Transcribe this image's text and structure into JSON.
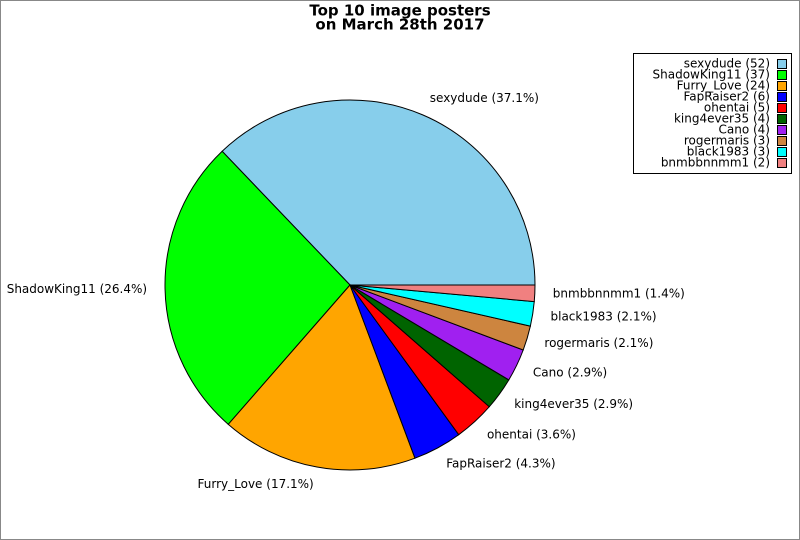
{
  "chart_data": {
    "type": "pie",
    "title": [
      "Top 10 image posters",
      "on March 28th 2017"
    ],
    "categories": [
      "sexydude",
      "ShadowKing11",
      "Furry_Love",
      "FapRaiser2",
      "ohentai",
      "king4ever35",
      "Cano",
      "rogermaris",
      "black1983",
      "bnmbbnnmm1"
    ],
    "values": [
      52,
      37,
      24,
      6,
      5,
      4,
      4,
      3,
      3,
      2
    ],
    "value_labels": [
      "sexydude (52)",
      "ShadowKing11 (37)",
      "Furry_Love (24)",
      "FapRaiser2 (6)",
      "ohentai (5)",
      "king4ever35 (4)",
      "Cano (4)",
      "rogermaris (3)",
      "black1983 (3)",
      "bnmbbnnmm1 (2)"
    ],
    "slice_labels": [
      "sexydude (37.1%)",
      "ShadowKing11 (26.4%)",
      "Furry_Love (17.1%)",
      "FapRaiser2 (4.3%)",
      "ohentai (3.6%)",
      "king4ever35 (2.9%)",
      "Cano (2.9%)",
      "rogermaris (2.1%)",
      "black1983 (2.1%)",
      "bnmbbnnmm1 (1.4%)"
    ],
    "colors": [
      "#87ceeb",
      "#00ff00",
      "#ffa500",
      "#0000ff",
      "#ff0000",
      "#006400",
      "#a020f0",
      "#cd853f",
      "#00ffff",
      "#f08080"
    ],
    "legend": "upper right"
  }
}
